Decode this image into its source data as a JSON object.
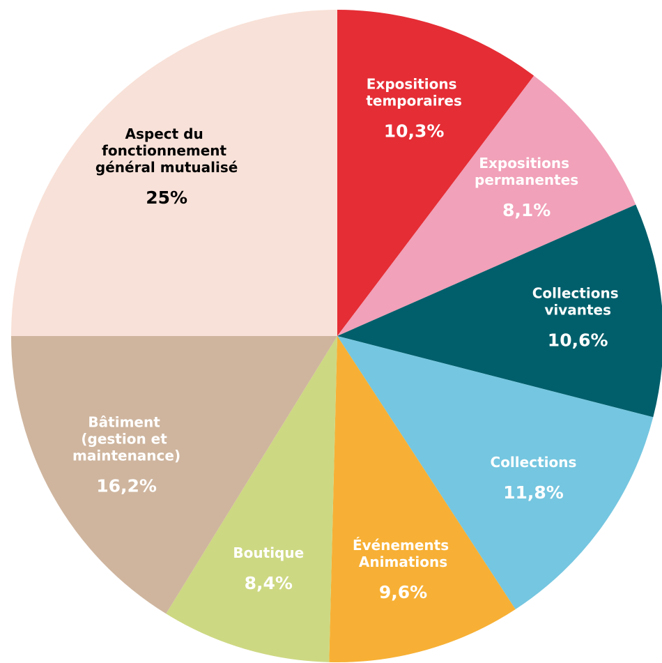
{
  "chart_data": {
    "type": "pie",
    "categories": [
      "Expositions\ntemporaires",
      "Expositions\npermanentes",
      "Collections\nvivantes",
      "Collections",
      "Événements\nAnimations",
      "Boutique",
      "Bâtiment\n(gestion et\nmaintenance)",
      "Aspect du\nfonctionnement\ngénéral mutualisé"
    ],
    "values": [
      10.3,
      8.1,
      10.6,
      11.8,
      9.6,
      8.4,
      16.2,
      25
    ],
    "value_labels": [
      "10,3%",
      "8,1%",
      "10,6%",
      "11,8%",
      "9,6%",
      "8,4%",
      "16,2%",
      "25%"
    ],
    "colors": [
      "#e52d35",
      "#f1a1b9",
      "#005f6b",
      "#75c6e0",
      "#f7b035",
      "#cdd882",
      "#cfb59e",
      "#f8e1d8"
    ],
    "label_colors": [
      "#ffffff",
      "#ffffff",
      "#ffffff",
      "#ffffff",
      "#ffffff",
      "#ffffff",
      "#ffffff",
      "#000000"
    ]
  }
}
